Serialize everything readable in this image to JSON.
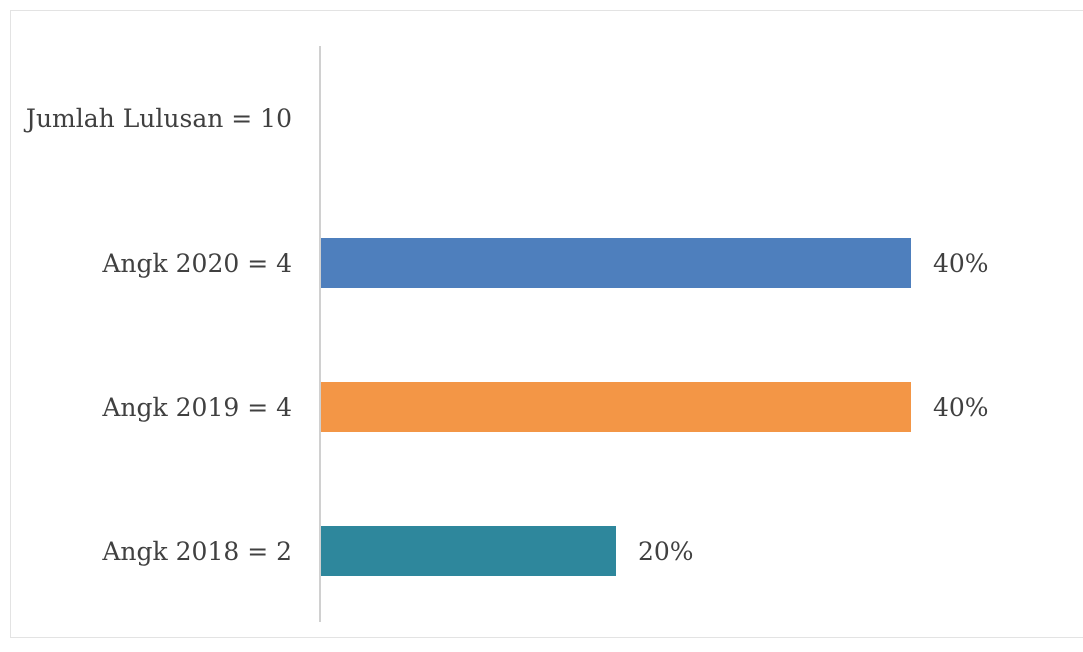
{
  "chart_data": {
    "type": "bar",
    "orientation": "horizontal",
    "categories": [
      "Jumlah Lulusan = 10",
      "Angk 2020 = 4",
      "Angk 2019 = 4",
      "Angk 2018 = 2"
    ],
    "values": [
      null,
      40,
      40,
      20
    ],
    "data_labels": [
      "",
      "40%",
      "40%",
      "20%"
    ],
    "colors": [
      "#ffffff",
      "#4e7fbd",
      "#f39646",
      "#2e879c"
    ],
    "title": "",
    "xlabel": "",
    "ylabel": "",
    "xlim": [
      0,
      40
    ],
    "grid": false,
    "legend": "none"
  }
}
